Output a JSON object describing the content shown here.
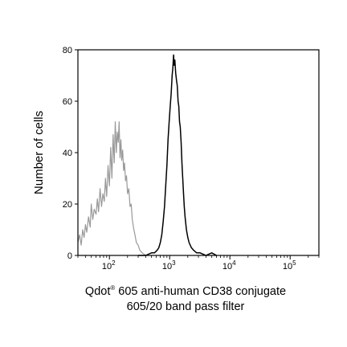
{
  "chart_data": {
    "type": "line",
    "title": "",
    "xlabel_line1": "Qdot",
    "xlabel_sup": "®",
    "xlabel_line1_rest": " 605 anti-human CD38 conjugate",
    "xlabel_line2": "605/20 band pass filter",
    "ylabel": "Number of cells",
    "x_scale": "log",
    "xlim": [
      30,
      300000
    ],
    "ylim": [
      0,
      80
    ],
    "y_ticks": [
      0,
      20,
      40,
      60,
      80
    ],
    "x_ticks": [
      {
        "value": 100,
        "base": "10",
        "exp": "2"
      },
      {
        "value": 1000,
        "base": "10",
        "exp": "3"
      },
      {
        "value": 10000,
        "base": "10",
        "exp": "4"
      },
      {
        "value": 100000,
        "base": "10",
        "exp": "5"
      }
    ],
    "grid": false,
    "series": [
      {
        "color": "#999999",
        "x": [
          30,
          32,
          34,
          36,
          38,
          40,
          42,
          45,
          48,
          50,
          53,
          56,
          60,
          63,
          66,
          70,
          74,
          78,
          82,
          86,
          90,
          95,
          100,
          105,
          110,
          115,
          120,
          125,
          130,
          135,
          140,
          145,
          150,
          155,
          160,
          166,
          172,
          178,
          185,
          192,
          200,
          210,
          220,
          230,
          240,
          250,
          265,
          280,
          300,
          320,
          350,
          400
        ],
        "y": [
          5,
          8,
          4,
          10,
          7,
          12,
          9,
          15,
          11,
          20,
          14,
          18,
          16,
          22,
          17,
          26,
          19,
          24,
          21,
          30,
          23,
          35,
          27,
          42,
          30,
          47,
          36,
          52,
          40,
          48,
          44,
          52,
          38,
          45,
          37,
          41,
          33,
          36,
          29,
          31,
          24,
          26,
          19,
          20,
          14,
          11,
          8,
          5,
          4,
          2,
          1,
          0
        ]
      },
      {
        "color": "#000000",
        "x": [
          300,
          400,
          500,
          560,
          620,
          660,
          700,
          740,
          780,
          820,
          860,
          900,
          940,
          980,
          1020,
          1060,
          1100,
          1130,
          1160,
          1190,
          1220,
          1260,
          1300,
          1340,
          1380,
          1420,
          1460,
          1500,
          1550,
          1600,
          1650,
          1700,
          1750,
          1800,
          1900,
          2000,
          2100,
          2300,
          2500,
          2800,
          3200,
          4000,
          5000,
          6000
        ],
        "y": [
          0,
          0,
          1,
          1,
          2,
          3,
          5,
          8,
          13,
          19,
          27,
          35,
          45,
          52,
          58,
          63,
          70,
          73,
          78,
          74,
          76,
          71,
          68,
          66,
          60,
          58,
          52,
          50,
          44,
          36,
          30,
          24,
          19,
          15,
          10,
          7,
          5,
          3,
          2,
          1,
          1,
          0,
          1,
          0
        ]
      }
    ]
  }
}
